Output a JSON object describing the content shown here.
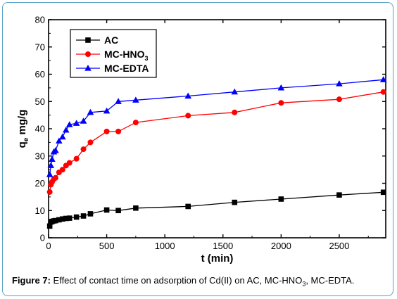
{
  "chart_data": {
    "type": "line",
    "xlabel": "t (min)",
    "ylabel": "q_e mg/g",
    "xlim": [
      0,
      2900
    ],
    "ylim": [
      0,
      80
    ],
    "xticks": [
      0,
      500,
      1000,
      1500,
      2000,
      2500
    ],
    "yticks": [
      0,
      10,
      20,
      30,
      40,
      50,
      60,
      70,
      80
    ],
    "legend_position": "top-left",
    "grid": false,
    "series": [
      {
        "name": "AC",
        "color": "#000000",
        "marker": "square",
        "x": [
          10,
          20,
          30,
          45,
          60,
          90,
          120,
          150,
          180,
          240,
          300,
          360,
          500,
          600,
          750,
          1200,
          1600,
          2000,
          2500,
          2880
        ],
        "y": [
          4.3,
          5.8,
          6.0,
          6.2,
          6.3,
          6.6,
          6.9,
          7.1,
          7.2,
          7.6,
          8.0,
          8.8,
          10.2,
          10.0,
          10.9,
          11.5,
          13.0,
          14.2,
          15.7,
          16.7
        ]
      },
      {
        "name": "MC-HNO3",
        "color": "#ff0000",
        "marker": "circle",
        "x": [
          10,
          20,
          30,
          45,
          60,
          90,
          120,
          150,
          180,
          240,
          300,
          360,
          500,
          600,
          750,
          1200,
          1600,
          2000,
          2500,
          2880
        ],
        "y": [
          16.8,
          19.5,
          20.5,
          21.5,
          22.0,
          24.0,
          25.0,
          26.5,
          27.5,
          29.0,
          32.5,
          35.0,
          39.0,
          39.0,
          42.3,
          44.8,
          46.0,
          49.5,
          50.8,
          53.5
        ]
      },
      {
        "name": "MC-EDTA",
        "color": "#0000ff",
        "marker": "triangle",
        "x": [
          10,
          20,
          30,
          45,
          60,
          90,
          120,
          150,
          180,
          240,
          300,
          360,
          500,
          600,
          750,
          1200,
          1600,
          2000,
          2500,
          2880
        ],
        "y": [
          23.2,
          26.5,
          28.8,
          31.5,
          32.0,
          35.5,
          37.0,
          39.5,
          41.5,
          42.0,
          42.8,
          46.0,
          46.5,
          50.0,
          50.5,
          52.0,
          53.5,
          55.0,
          56.5,
          58.0
        ]
      }
    ]
  },
  "legend": {
    "items": [
      {
        "text": "AC",
        "sub": ""
      },
      {
        "text": "MC-HNO",
        "sub": "3"
      },
      {
        "text": "MC-EDTA",
        "sub": ""
      }
    ]
  },
  "axis_labels": {
    "x": "t (min)",
    "y_main": "q",
    "y_sub": "e",
    "y_rest": " mg/g"
  },
  "caption": {
    "label": "Figure 7:",
    "text_before": " Effect of contact time on adsorption of Cd(II) on AC, MC-HNO",
    "sub": "3",
    "text_after": ", MC-EDTA."
  }
}
